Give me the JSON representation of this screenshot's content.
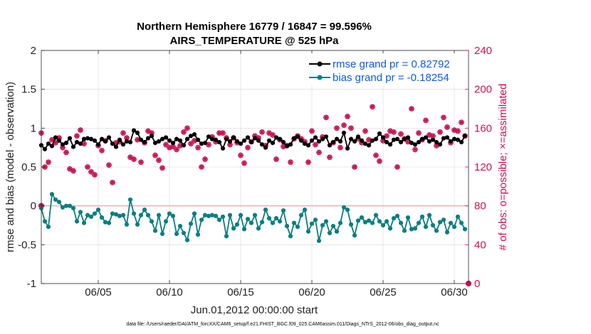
{
  "chart_data": {
    "type": "line",
    "title": "Northern Hemisphere 16779 / 16847 = 99.596%",
    "subtitle": "AIRS_TEMPERATURE @ 525 hPa",
    "xlabel": "Jun.01,2012 00:00:00 start",
    "ylabel_left": "rmse and bias (model - observation)",
    "ylabel_right": "# of obs: o=possible; ×=assimilated",
    "footnote": "data file: /Users/raeder/DAI/ATM_forcXX/CAM6_setup/f.e21.FHIST_BGC.f09_025.CAM6assim.011/Diags_NTrS_2012-06/obs_diag_output.nc",
    "xlim": [
      1,
      31
    ],
    "ylim_left": [
      -1,
      2
    ],
    "ylim_right": [
      0,
      240
    ],
    "grid": true,
    "legend_position": "top-right",
    "x_tick_values": [
      5,
      10,
      15,
      20,
      25,
      30
    ],
    "x_tick_labels": [
      "06/05",
      "06/10",
      "06/15",
      "06/20",
      "06/25",
      "06/30"
    ],
    "y_left_ticks": [
      {
        "value": 2,
        "label": "2"
      },
      {
        "value": 1.5,
        "label": "1.5"
      },
      {
        "value": 1,
        "label": "1"
      },
      {
        "value": 0.5,
        "label": "0.5"
      },
      {
        "value": 0,
        "label": "0"
      },
      {
        "value": -0.5,
        "label": "-0.5"
      },
      {
        "value": -1,
        "label": "-1"
      }
    ],
    "y_right_ticks": [
      {
        "value": 240,
        "label": "240"
      },
      {
        "value": 200,
        "label": "200"
      },
      {
        "value": 160,
        "label": "160"
      },
      {
        "value": 120,
        "label": "120"
      },
      {
        "value": 80,
        "label": "80"
      },
      {
        "value": 40,
        "label": "40"
      },
      {
        "value": 0,
        "label": "0"
      }
    ],
    "x_start": 1.0,
    "x_step": 0.25,
    "series": [
      {
        "name": "rmse",
        "legend": "rmse grand pr = 0.82792",
        "color": "#000000",
        "values": [
          0.78,
          0.73,
          0.8,
          0.77,
          0.88,
          0.84,
          0.79,
          0.81,
          0.87,
          0.76,
          0.82,
          0.8,
          0.86,
          0.87,
          0.86,
          0.84,
          0.79,
          0.86,
          0.83,
          0.88,
          0.8,
          0.76,
          0.85,
          0.79,
          0.83,
          0.82,
          0.97,
          0.94,
          0.85,
          0.82,
          0.87,
          0.9,
          0.81,
          0.83,
          0.86,
          0.88,
          0.84,
          0.81,
          0.86,
          0.84,
          0.78,
          0.86,
          0.9,
          0.92,
          0.85,
          0.8,
          0.81,
          0.89,
          0.86,
          0.85,
          0.82,
          0.74,
          0.86,
          0.83,
          0.88,
          0.83,
          0.8,
          0.84,
          0.88,
          0.82,
          0.87,
          0.84,
          0.79,
          0.75,
          0.84,
          0.81,
          0.88,
          0.86,
          0.82,
          0.77,
          0.79,
          0.87,
          0.89,
          0.84,
          0.8,
          0.78,
          0.84,
          0.88,
          0.83,
          0.86,
          0.89,
          0.78,
          0.82,
          0.86,
          0.83,
          0.94,
          0.74,
          0.86,
          0.83,
          0.89,
          0.84,
          0.8,
          0.78,
          0.84,
          0.86,
          0.93,
          0.88,
          0.82,
          0.79,
          0.85,
          0.86,
          0.82,
          0.86,
          0.88,
          0.81,
          0.79,
          0.82,
          0.86,
          0.88,
          0.83,
          0.85,
          0.82,
          0.79,
          0.87,
          0.88,
          0.83,
          0.86,
          0.85,
          0.82,
          0.9
        ],
        "markers": [
          {
            "x": 5.75,
            "y": 0.93
          },
          {
            "x": 12.75,
            "y": 0.92
          },
          {
            "x": 20.5,
            "y": 0.91
          },
          {
            "x": 28.5,
            "y": 0.93
          },
          {
            "x": 30.0,
            "y": 0.95
          }
        ]
      },
      {
        "name": "bias",
        "legend": "bias grand pr = -0.18254",
        "color": "#0a7e80",
        "values": [
          -0.03,
          -0.2,
          -0.27,
          0.15,
          0.08,
          0.05,
          -0.02,
          0.0,
          0.0,
          -0.03,
          -0.2,
          -0.08,
          -0.22,
          -0.12,
          -0.14,
          -0.1,
          -0.05,
          -0.15,
          -0.21,
          -0.22,
          -0.1,
          -0.11,
          -0.13,
          -0.12,
          -0.24,
          0.08,
          -0.1,
          -0.24,
          -0.12,
          -0.05,
          -0.12,
          -0.2,
          -0.32,
          -0.12,
          -0.36,
          -0.2,
          -0.1,
          -0.13,
          -0.36,
          -0.26,
          -0.35,
          -0.44,
          -0.23,
          -0.1,
          -0.37,
          -0.18,
          -0.12,
          -0.13,
          -0.12,
          -0.13,
          -0.18,
          -0.14,
          -0.39,
          -0.12,
          -0.29,
          -0.24,
          -0.12,
          -0.3,
          -0.17,
          -0.22,
          -0.12,
          -0.29,
          -0.21,
          -0.05,
          -0.16,
          -0.22,
          -0.16,
          -0.2,
          -0.06,
          -0.26,
          -0.39,
          -0.22,
          -0.27,
          -0.12,
          -0.05,
          -0.33,
          -0.23,
          -0.18,
          -0.45,
          -0.25,
          -0.2,
          -0.35,
          -0.26,
          -0.33,
          -0.22,
          -0.02,
          -0.05,
          -0.24,
          -0.38,
          -0.19,
          -0.15,
          -0.21,
          -0.19,
          -0.22,
          -0.12,
          -0.2,
          -0.25,
          -0.2,
          -0.29,
          -0.16,
          -0.13,
          -0.22,
          -0.32,
          -0.15,
          -0.3,
          -0.29,
          -0.22,
          -0.14,
          -0.27,
          -0.12,
          -0.25,
          -0.32,
          -0.21,
          -0.18,
          -0.34,
          -0.22,
          -0.27,
          -0.14,
          -0.22,
          -0.3
        ]
      },
      {
        "name": "obs_possible",
        "legend": "",
        "color": "#c8134f",
        "marker": "o",
        "values": [
          155,
          120,
          125,
          148,
          145,
          150,
          140,
          135,
          118,
          116,
          152,
          158,
          144,
          120,
          115,
          112,
          142,
          137,
          147,
          122,
          104,
          145,
          146,
          155,
          150,
          130,
          128,
          148,
          125,
          145,
          157,
          155,
          132,
          127,
          119,
          143,
          140,
          141,
          138,
          142,
          156,
          160,
          144,
          147,
          140,
          120,
          128,
          143,
          151,
          146,
          155,
          155,
          150,
          143,
          150,
          145,
          132,
          124,
          140,
          146,
          152,
          150,
          156,
          142,
          155,
          153,
          128,
          148,
          141,
          142,
          125,
          149,
          152,
          149,
          146,
          125,
          157,
          143,
          135,
          151,
          171,
          130,
          145,
          160,
          140,
          163,
          172,
          160,
          120,
          149,
          145,
          157,
          148,
          182,
          132,
          126,
          147,
          152,
          157,
          156,
          120,
          154,
          149,
          146,
          180,
          138,
          155,
          148,
          168,
          153,
          152,
          142,
          156,
          171,
          161,
          145,
          158,
          157,
          166,
          152
        ],
        "extra_points": [
          {
            "x": 1.0,
            "y": 80
          },
          {
            "x": 31.0,
            "y": 0
          }
        ]
      },
      {
        "name": "obs_assimilated",
        "legend": "",
        "color": "#c8134f",
        "marker": "x",
        "values": [
          155,
          120,
          125,
          148,
          145,
          150,
          140,
          135,
          118,
          116,
          152,
          158,
          144,
          120,
          115,
          112,
          142,
          137,
          147,
          122,
          104,
          145,
          146,
          155,
          150,
          130,
          128,
          148,
          125,
          145,
          157,
          155,
          132,
          127,
          119,
          143,
          140,
          141,
          138,
          142,
          156,
          160,
          144,
          147,
          140,
          120,
          128,
          143,
          151,
          146,
          155,
          155,
          150,
          143,
          150,
          145,
          132,
          124,
          140,
          146,
          152,
          150,
          156,
          142,
          155,
          153,
          128,
          148,
          141,
          142,
          125,
          149,
          152,
          149,
          146,
          125,
          157,
          143,
          135,
          151,
          171,
          130,
          145,
          160,
          140,
          163,
          172,
          160,
          120,
          149,
          145,
          157,
          148,
          182,
          132,
          126,
          147,
          152,
          157,
          156,
          120,
          154,
          149,
          146,
          180,
          138,
          155,
          148,
          168,
          153,
          152,
          142,
          156,
          171,
          161,
          145,
          158,
          157,
          166,
          152
        ]
      }
    ]
  }
}
